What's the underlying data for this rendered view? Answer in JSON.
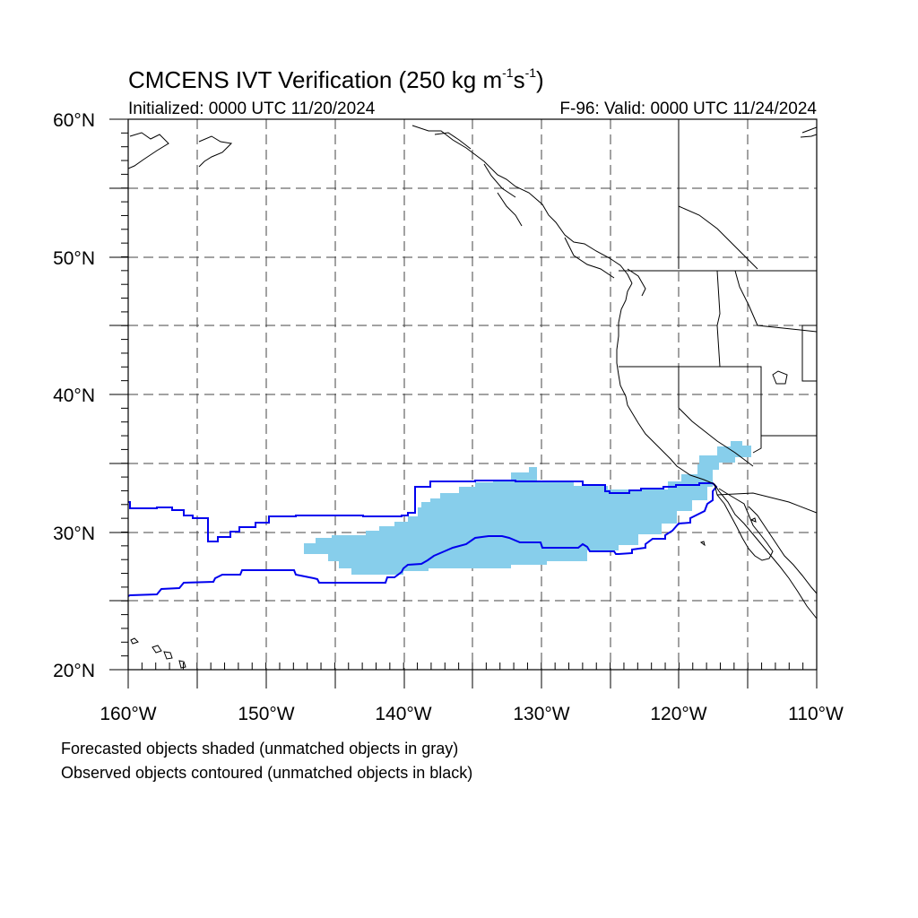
{
  "title": {
    "prefix": "CMCENS IVT Verification (250 kg m",
    "exp1": "-1",
    "mid": "s",
    "exp2": "-1",
    "suffix": ")"
  },
  "initialized": "Initialized: 0000 UTC 11/20/2024",
  "valid": "F-96: Valid: 0000 UTC 11/24/2024",
  "lat_labels": [
    "60°N",
    "50°N",
    "40°N",
    "30°N",
    "20°N"
  ],
  "lon_labels": [
    "160°W",
    "150°W",
    "140°W",
    "130°W",
    "120°W",
    "110°W"
  ],
  "footnotes": [
    "Forecasted objects shaded (unmatched objects in gray)",
    "Observed objects contoured (unmatched objects in black)"
  ],
  "map": {
    "lon_range": [
      -160,
      -110
    ],
    "lat_range": [
      20,
      60
    ],
    "forecast_fill_color": "#87ceeb",
    "observed_contour_color": "#0000ee",
    "grid_style": "dashed"
  }
}
